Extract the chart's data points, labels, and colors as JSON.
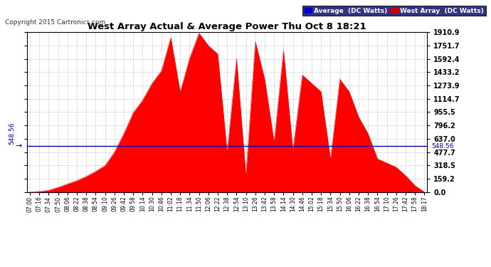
{
  "title": "West Array Actual & Average Power Thu Oct 8 18:21",
  "copyright": "Copyright 2015 Cartronics.com",
  "avg_value": 548.56,
  "ylim": [
    0.0,
    1910.9
  ],
  "yticks": [
    0.0,
    159.2,
    318.5,
    477.7,
    637.0,
    796.2,
    955.5,
    1114.7,
    1273.9,
    1433.2,
    1592.4,
    1751.7,
    1910.9
  ],
  "avg_line_color": "#0000bb",
  "fill_color": "#ff0000",
  "background_color": "#ffffff",
  "grid_color": "#bbbbbb",
  "title_color": "#000000",
  "legend_avg_bg": "#0000cc",
  "legend_west_bg": "#cc0000",
  "xtick_labels": [
    "07:00",
    "07:16",
    "07:34",
    "07:50",
    "08:06",
    "08:22",
    "08:38",
    "08:54",
    "09:10",
    "09:26",
    "09:42",
    "09:58",
    "10:14",
    "10:30",
    "10:46",
    "11:02",
    "11:18",
    "11:34",
    "11:50",
    "12:06",
    "12:22",
    "12:38",
    "12:54",
    "13:10",
    "13:26",
    "13:42",
    "13:58",
    "14:14",
    "14:30",
    "14:46",
    "15:02",
    "15:18",
    "15:34",
    "15:50",
    "16:06",
    "16:22",
    "16:38",
    "16:54",
    "17:10",
    "17:26",
    "17:42",
    "17:58",
    "18:17"
  ],
  "power_values": [
    5,
    10,
    25,
    60,
    100,
    140,
    190,
    250,
    320,
    480,
    700,
    950,
    1100,
    1300,
    1450,
    1850,
    1200,
    1600,
    1900,
    1750,
    1650,
    480,
    1600,
    200,
    1800,
    1350,
    600,
    1700,
    500,
    1400,
    1300,
    1200,
    400,
    1350,
    1200,
    900,
    700,
    400,
    350,
    300,
    200,
    80,
    5
  ]
}
